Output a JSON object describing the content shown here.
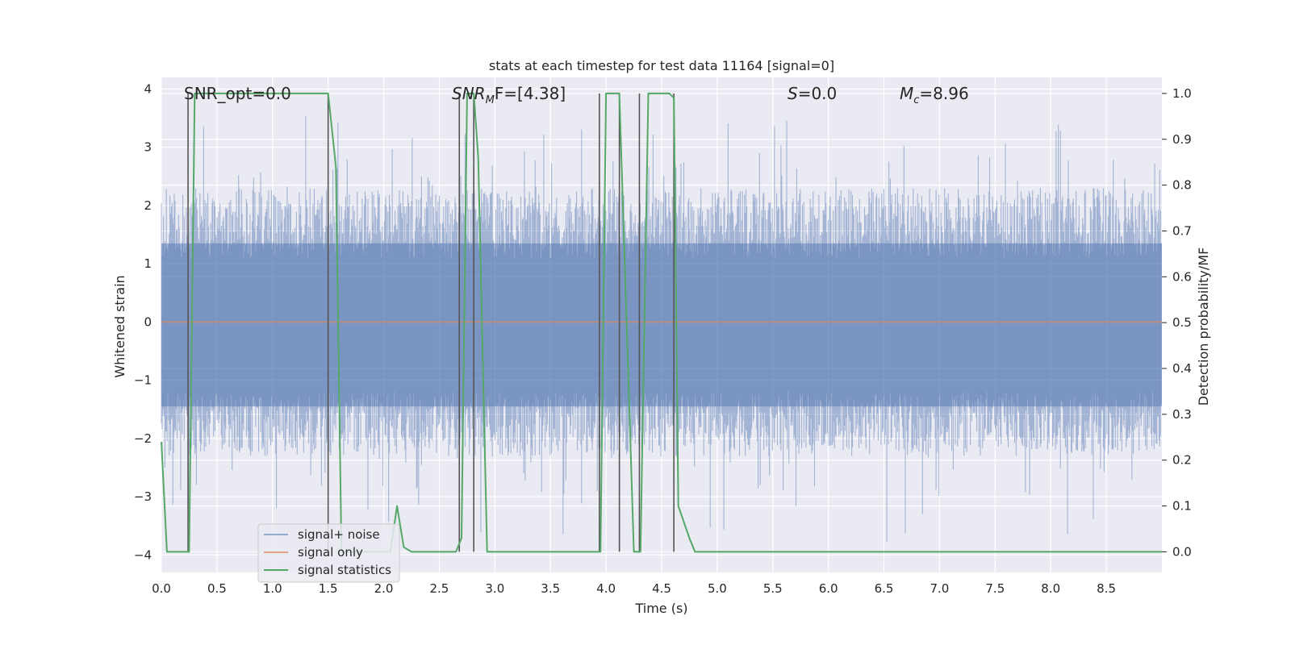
{
  "chart_data": {
    "type": "line",
    "title": "stats at each timestep for test data 11164 [signal=0]",
    "xlabel": "Time (s)",
    "ylabel": "Whitened strain",
    "ylabel_right": "Detection probability/MF",
    "xlim": [
      0.0,
      9.0
    ],
    "ylim": [
      -4.3,
      4.2
    ],
    "ylim_right": [
      -0.045,
      1.035
    ],
    "xticks": [
      "0.0",
      "0.5",
      "1.0",
      "1.5",
      "2.0",
      "2.5",
      "3.0",
      "3.5",
      "4.0",
      "4.5",
      "5.0",
      "5.5",
      "6.0",
      "6.5",
      "7.0",
      "7.5",
      "8.0",
      "8.5"
    ],
    "yticks": [
      "4",
      "3",
      "2",
      "1",
      "0",
      "−1",
      "−2",
      "−3",
      "−4"
    ],
    "yticks_right": [
      "1.0",
      "0.9",
      "0.8",
      "0.7",
      "0.6",
      "0.5",
      "0.4",
      "0.3",
      "0.2",
      "0.1",
      "0.0"
    ],
    "grid": true,
    "legend_position": "lower-left",
    "annotations": {
      "snr_opt": "SNR_opt=0.0",
      "snr_mf_base": "SNR",
      "snr_mf_sub": "M",
      "snr_mf_tail": "F=[4.38]",
      "s_base": "S",
      "s_tail": "=0.0",
      "mc_base": "M",
      "mc_sub": "c",
      "mc_tail": "=8.96"
    },
    "series": [
      {
        "name": "signal+ noise",
        "color": "#4c72b0",
        "description_note": "noise band, roughly within ±2 with spikes to ±3.5"
      },
      {
        "name": "signal only",
        "color": "#dd8452",
        "x": [
          0.0,
          9.0
        ],
        "y": [
          0.0,
          0.0
        ]
      },
      {
        "name": "signal statistics",
        "color": "#55a868",
        "axis": "right",
        "x": [
          0.0,
          0.05,
          0.2,
          0.25,
          0.3,
          1.5,
          1.57,
          1.62,
          1.65,
          2.0,
          2.06,
          2.12,
          2.18,
          2.25,
          2.65,
          2.7,
          2.75,
          2.81,
          2.85,
          2.93,
          3.0,
          3.95,
          4.0,
          4.12,
          4.25,
          4.31,
          4.38,
          4.57,
          4.61,
          4.65,
          4.75,
          4.8,
          9.0
        ],
        "y": [
          0.24,
          0.0,
          0.0,
          0.0,
          1.0,
          1.0,
          0.84,
          0.0,
          0.0,
          0.0,
          0.0,
          0.1,
          0.01,
          0.0,
          0.0,
          0.03,
          1.0,
          1.0,
          0.86,
          0.0,
          0.0,
          0.0,
          1.0,
          1.0,
          0.0,
          0.0,
          1.0,
          1.0,
          0.99,
          0.1,
          0.03,
          0.0,
          0.0
        ]
      }
    ],
    "vertical_markers_x": [
      0.24,
      1.5,
      2.68,
      2.81,
      3.94,
      4.12,
      4.3,
      4.61
    ],
    "marker_color": "#555555"
  }
}
